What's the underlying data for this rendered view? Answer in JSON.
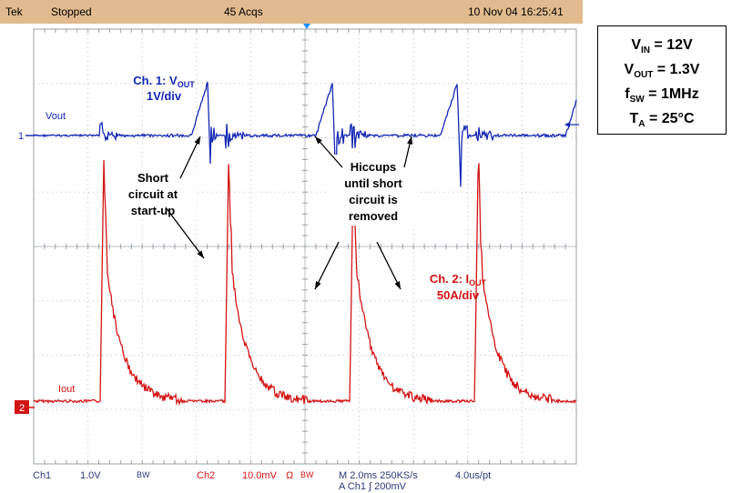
{
  "header": {
    "brand": "Tek",
    "status": "Stopped",
    "acqs": "45 Acqs",
    "datetime": "10 Nov 04 16:25:41"
  },
  "footer": {
    "ch1": "Ch1",
    "ch1_scale": "1.0V",
    "ch1_bw": "BW",
    "ch2": "Ch2",
    "ch2_scale": "10.0mV",
    "ch2_ohm": "Ω",
    "ch2_bw": "BW",
    "timebase": "M 2.0ms 250KS/s",
    "resolution": "4.0us/pt",
    "trigger": "A  Ch1  ∫  200mV"
  },
  "specs": {
    "vin_label": "V",
    "vin_sub": "IN",
    "vin_value": " = 12V",
    "vout_label": "V",
    "vout_sub": "OUT",
    "vout_value": " = 1.3V",
    "fsw_label": "f",
    "fsw_sub": "SW",
    "fsw_value": " = 1MHz",
    "ta_label": "T",
    "ta_sub": "A",
    "ta_value": " = 25°C"
  },
  "chart_data": {
    "type": "line",
    "grid": true,
    "divisions": {
      "x": 10,
      "y": 8
    },
    "time_per_div": "2.0ms",
    "series": [
      {
        "name": "Vout",
        "channel": "1",
        "color": "#1428b4",
        "volts_per_div": "1V/div"
      },
      {
        "name": "Iout",
        "channel": "2",
        "color": "#d21414",
        "amps_per_div": "50A/div"
      }
    ],
    "channel_markers": {
      "ch1": "1",
      "ch2": "2"
    },
    "trace_labels": {
      "vout": "Vout",
      "iout": "Iout"
    },
    "annotations": {
      "ch1_title_a": "Ch. 1: V",
      "ch1_title_sub": "OUT",
      "ch1_scale": "1V/div",
      "ch2_title_a": "Ch. 2: I",
      "ch2_title_sub": "OUT",
      "ch2_scale": "50A/div",
      "short_line1": "Short",
      "short_line2": "circuit at",
      "short_line3": "start-up",
      "hiccup_line1": "Hiccups",
      "hiccup_line2": "until short",
      "hiccup_line3": "circuit is",
      "hiccup_line4": "removed"
    },
    "hiccup_period_divs": 2.3
  }
}
